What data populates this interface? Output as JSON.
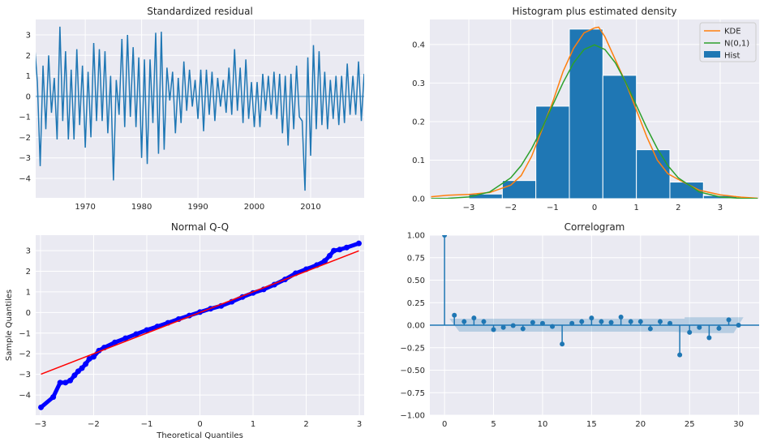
{
  "chart_data": [
    {
      "type": "line",
      "title": "Standardized residual",
      "x_start": 1961.0,
      "x_step": 0.5,
      "values": [
        2.5,
        0.7,
        -3.4,
        1.5,
        -1.6,
        2.0,
        -0.8,
        0.9,
        -2.1,
        3.4,
        -1.2,
        2.2,
        -2.1,
        1.3,
        -2.1,
        2.3,
        -1.4,
        1.5,
        -2.5,
        1.2,
        -2.0,
        2.6,
        -1.2,
        2.3,
        -1.2,
        2.2,
        -1.8,
        1.0,
        -4.1,
        0.8,
        -0.9,
        2.8,
        -1.5,
        3.0,
        -1.0,
        2.4,
        -1.5,
        1.9,
        -3.0,
        1.8,
        -3.3,
        1.8,
        -1.3,
        3.1,
        -2.8,
        3.15,
        -2.6,
        1.4,
        -0.2,
        1.2,
        -1.8,
        0.9,
        -1.3,
        1.7,
        -0.7,
        1.3,
        -0.5,
        0.8,
        -1.1,
        1.3,
        -1.7,
        1.3,
        -0.9,
        1.2,
        -1.2,
        0.9,
        -0.5,
        0.8,
        -0.8,
        1.4,
        -0.9,
        2.3,
        -0.7,
        1.4,
        -1.3,
        1.8,
        -1.1,
        0.7,
        -1.5,
        0.7,
        -1.5,
        1.1,
        -0.7,
        1.0,
        -0.9,
        1.2,
        -1.1,
        1.1,
        -1.8,
        1.0,
        -2.4,
        1.1,
        -1.6,
        1.5,
        -1.0,
        -1.2,
        -4.6,
        1.9,
        -2.9,
        2.5,
        -1.6,
        2.2,
        -1.4,
        1.2,
        -1.6,
        0.8,
        -1.1,
        1.0,
        -1.4,
        1.0,
        -1.3,
        1.6,
        -0.9,
        1.0,
        -0.9,
        1.7,
        -1.2,
        1.1
      ],
      "xlim": [
        1961.2,
        2019.5
      ],
      "ylim": [
        -4.95,
        3.75
      ],
      "xticks": [
        1970,
        1980,
        1990,
        2000,
        2010
      ],
      "xtick_labels": [
        "1970",
        "1980",
        "1990",
        "2000",
        "2010"
      ],
      "yticks": [
        -4,
        -3,
        -2,
        -1,
        0,
        1,
        2,
        3
      ],
      "ytick_labels": [
        "−4",
        "−3",
        "−2",
        "−1",
        "0",
        "1",
        "2",
        "3"
      ],
      "color": "#1f77b4",
      "grid": true
    },
    {
      "type": "bar",
      "title": "Histogram plus estimated density",
      "bin_edges": [
        -3.0,
        -2.2,
        -1.4,
        -0.6,
        0.2,
        1.0,
        1.8,
        2.6,
        3.4
      ],
      "values": [
        0.012,
        0.047,
        0.24,
        0.44,
        0.32,
        0.127,
        0.043,
        0.008
      ],
      "series": [
        {
          "name": "KDE",
          "color": "#ff7f0e",
          "x": [
            -3.9,
            -3.5,
            -3.0,
            -2.5,
            -2.0,
            -1.75,
            -1.5,
            -1.25,
            -1.0,
            -0.75,
            -0.5,
            -0.25,
            0.0,
            0.1,
            0.25,
            0.5,
            0.75,
            1.0,
            1.25,
            1.5,
            1.75,
            2.0,
            2.5,
            3.0,
            3.5,
            3.9
          ],
          "y": [
            0.005,
            0.009,
            0.011,
            0.016,
            0.035,
            0.06,
            0.11,
            0.18,
            0.25,
            0.33,
            0.39,
            0.43,
            0.443,
            0.445,
            0.42,
            0.36,
            0.3,
            0.23,
            0.16,
            0.1,
            0.065,
            0.05,
            0.022,
            0.01,
            0.004,
            0.001
          ]
        },
        {
          "name": "N(0,1)",
          "color": "#2ca02c",
          "x": [
            -3.9,
            -3.5,
            -3.0,
            -2.5,
            -2.0,
            -1.75,
            -1.5,
            -1.25,
            -1.0,
            -0.75,
            -0.5,
            -0.25,
            0.0,
            0.25,
            0.5,
            0.75,
            1.0,
            1.25,
            1.5,
            1.75,
            2.0,
            2.5,
            3.0,
            3.5,
            3.9
          ],
          "y": [
            0.0002,
            0.0009,
            0.0044,
            0.0175,
            0.054,
            0.086,
            0.13,
            0.183,
            0.242,
            0.301,
            0.352,
            0.387,
            0.399,
            0.387,
            0.352,
            0.301,
            0.242,
            0.183,
            0.13,
            0.086,
            0.054,
            0.0175,
            0.0044,
            0.0009,
            0.0002
          ]
        }
      ],
      "bar_series_name": "Hist",
      "bar_color": "#1f77b4",
      "legend": "top-right",
      "xlim": [
        -3.93,
        3.93
      ],
      "ylim": [
        0,
        0.465
      ],
      "xticks": [
        -3,
        -2,
        -1,
        0,
        1,
        2,
        3
      ],
      "xtick_labels": [
        "−3",
        "−2",
        "−1",
        "0",
        "1",
        "2",
        "3"
      ],
      "yticks": [
        0,
        0.1,
        0.2,
        0.3,
        0.4
      ],
      "ytick_labels": [
        "0.0",
        "0.1",
        "0.2",
        "0.3",
        "0.4"
      ],
      "grid": true
    },
    {
      "type": "scatter",
      "title": "Normal Q-Q",
      "xlabel": "Theoretical Quantiles",
      "ylabel": "Sample Quantiles",
      "x": [
        -2.99,
        -2.76,
        -2.63,
        -2.53,
        -2.44,
        -2.36,
        -2.29,
        -2.22,
        -2.15,
        -2.08,
        -2.0,
        -1.9,
        -1.8,
        -1.6,
        -1.4,
        -1.2,
        -1.0,
        -0.8,
        -0.6,
        -0.4,
        -0.2,
        0.0,
        0.2,
        0.4,
        0.6,
        0.8,
        1.0,
        1.2,
        1.4,
        1.6,
        1.8,
        2.0,
        2.2,
        2.35,
        2.44,
        2.52,
        2.63,
        2.76,
        2.99
      ],
      "y": [
        -4.6,
        -4.1,
        -3.4,
        -3.4,
        -3.3,
        -3.05,
        -2.85,
        -2.7,
        -2.5,
        -2.25,
        -2.15,
        -1.85,
        -1.7,
        -1.45,
        -1.25,
        -1.05,
        -0.85,
        -0.68,
        -0.5,
        -0.32,
        -0.15,
        0.02,
        0.18,
        0.32,
        0.52,
        0.75,
        0.95,
        1.12,
        1.35,
        1.6,
        1.9,
        2.1,
        2.3,
        2.5,
        2.75,
        3.0,
        3.05,
        3.15,
        3.35
      ],
      "point_color": "#0000ff",
      "reference_line": {
        "x": [
          -2.99,
          2.99
        ],
        "y": [
          -2.99,
          2.99
        ],
        "color": "#ff0000"
      },
      "xlim": [
        -3.09,
        3.09
      ],
      "ylim": [
        -4.98,
        3.75
      ],
      "xticks": [
        -3,
        -2,
        -1,
        0,
        1,
        2,
        3
      ],
      "xtick_labels": [
        "−3",
        "−2",
        "−1",
        "0",
        "1",
        "2",
        "3"
      ],
      "yticks": [
        -4,
        -3,
        -2,
        -1,
        0,
        1,
        2,
        3
      ],
      "ytick_labels": [
        "−4",
        "−3",
        "−2",
        "−1",
        "0",
        "1",
        "2",
        "3"
      ],
      "grid": true
    },
    {
      "type": "stem",
      "title": "Correlogram",
      "lags": [
        0,
        1,
        2,
        3,
        4,
        5,
        6,
        7,
        8,
        9,
        10,
        11,
        12,
        13,
        14,
        15,
        16,
        17,
        18,
        19,
        20,
        21,
        22,
        23,
        24,
        25,
        26,
        27,
        28,
        29,
        30
      ],
      "values": [
        1.0,
        0.11,
        0.04,
        0.08,
        0.04,
        -0.05,
        -0.025,
        -0.005,
        -0.04,
        0.03,
        0.02,
        -0.015,
        -0.21,
        0.02,
        0.04,
        0.08,
        0.04,
        0.03,
        0.09,
        0.04,
        0.04,
        -0.04,
        0.04,
        0.02,
        -0.33,
        -0.08,
        -0.025,
        -0.14,
        -0.035,
        0.06,
        0.0
      ],
      "confidence_halfwidth": [
        0.072,
        0.072,
        0.072,
        0.072,
        0.072,
        0.072,
        0.072,
        0.072,
        0.072,
        0.072,
        0.072,
        0.072,
        0.072,
        0.072,
        0.072,
        0.072,
        0.072,
        0.072,
        0.072,
        0.072,
        0.072,
        0.072,
        0.072,
        0.072,
        0.088,
        0.088,
        0.088,
        0.088,
        0.088,
        0.088
      ],
      "color": "#1f77b4",
      "xlim": [
        -1.5,
        32.1
      ],
      "ylim": [
        -1.0,
        1.0
      ],
      "xticks": [
        0,
        5,
        10,
        15,
        20,
        25,
        30
      ],
      "xtick_labels": [
        "0",
        "5",
        "10",
        "15",
        "20",
        "25",
        "30"
      ],
      "yticks": [
        -1,
        -0.75,
        -0.5,
        -0.25,
        0,
        0.25,
        0.5,
        0.75,
        1
      ],
      "ytick_labels": [
        "−1.00",
        "−0.75",
        "−0.50",
        "−0.25",
        "0.00",
        "0.25",
        "0.50",
        "0.75",
        "1.00"
      ],
      "grid": true
    }
  ]
}
